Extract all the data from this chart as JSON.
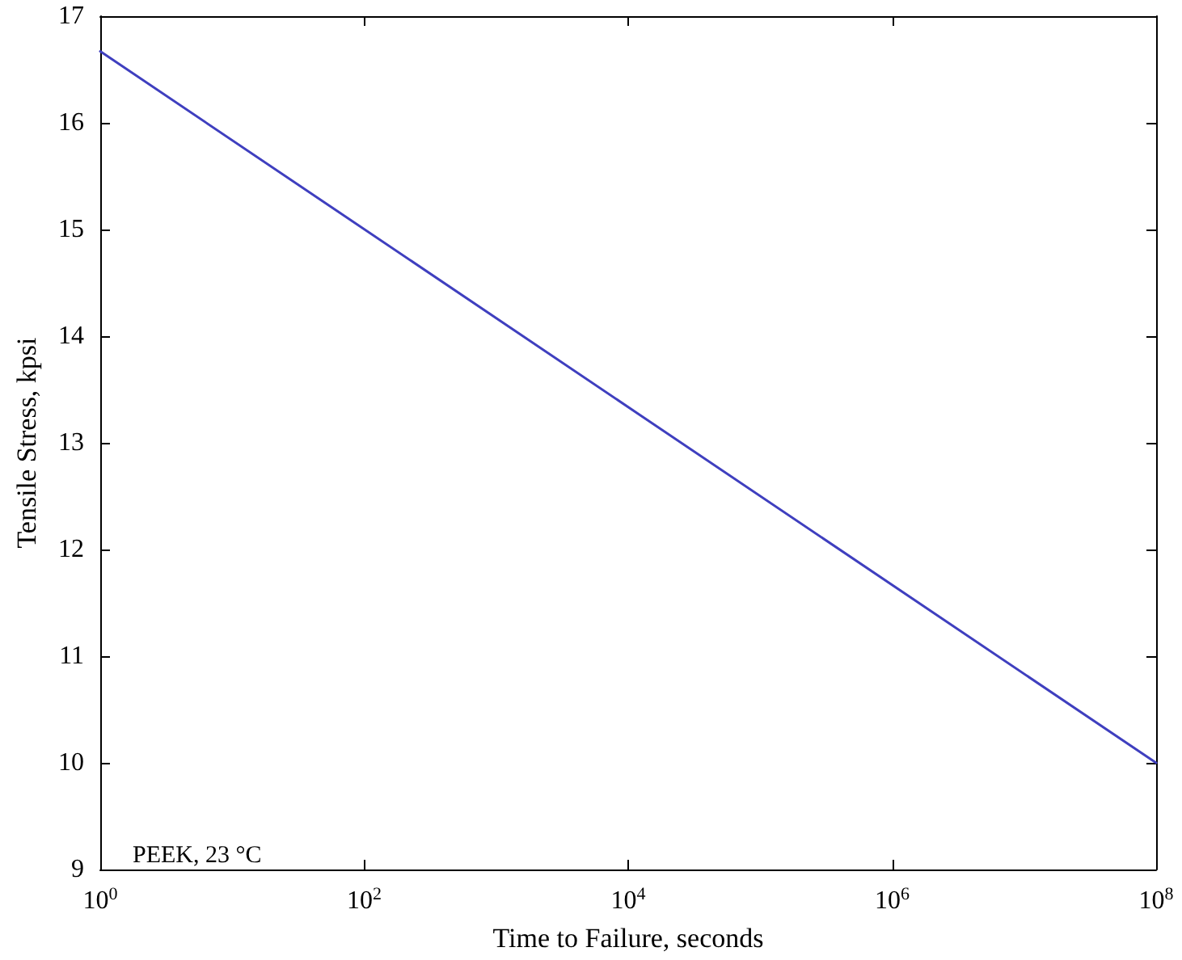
{
  "chart_data": {
    "type": "line",
    "xlabel": "Time to Failure, seconds",
    "ylabel": "Tensile Stress, kpsi",
    "annotations": [
      "PEEK, 23 °C"
    ],
    "x": [
      1,
      100000000
    ],
    "series": [
      {
        "color": "#3f3fbf",
        "values": [
          16.67,
          10
        ]
      }
    ],
    "log": "x",
    "xlim": [
      1,
      100000000
    ],
    "xticks": [
      {
        "value": 1,
        "label": "10$^{0}$"
      },
      {
        "value": 100,
        "label": "10$^{2}$"
      },
      {
        "value": 10000,
        "label": "10$^{4}$"
      },
      {
        "value": 1000000,
        "label": "10$^{6}$"
      },
      {
        "value": 100000000,
        "label": "10$^{8}$"
      }
    ],
    "ylim": [
      9,
      17
    ],
    "yticks": [
      9,
      10,
      11,
      12,
      13,
      14,
      15,
      16,
      17
    ],
    "marker": "none",
    "line_style": "solid"
  }
}
